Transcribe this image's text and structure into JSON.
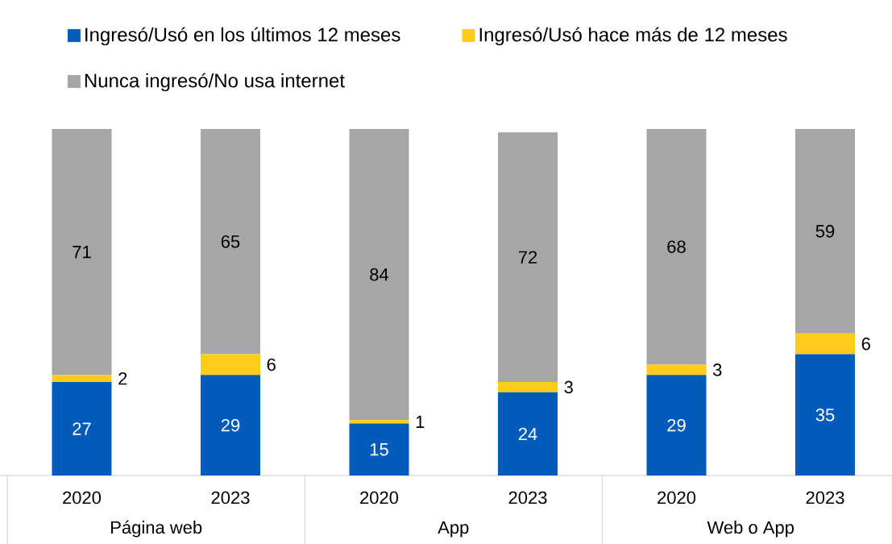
{
  "chart_data": {
    "type": "bar",
    "stacked": true,
    "data_labels": true,
    "legend": "top",
    "tick_labels": "x",
    "ylim": [
      0,
      100
    ],
    "categories": [
      "2020",
      "2023",
      "2020",
      "2023",
      "2020",
      "2023"
    ],
    "annotations": [
      "Página web",
      "App",
      "Web o App"
    ],
    "series": [
      {
        "name": "Ingresó/Usó en los últimos 12 meses",
        "color": "#005bbb",
        "values": [
          27,
          29,
          15,
          24,
          29,
          35
        ]
      },
      {
        "name": "Ingresó/Usó hace más de 12 meses",
        "color": "#ffcc1a",
        "values": [
          2,
          6,
          1,
          3,
          3,
          6
        ]
      },
      {
        "name": "Nunca ingresó/No usa internet",
        "color": "#a6a6a6",
        "values": [
          71,
          65,
          84,
          72,
          68,
          59
        ]
      }
    ]
  }
}
